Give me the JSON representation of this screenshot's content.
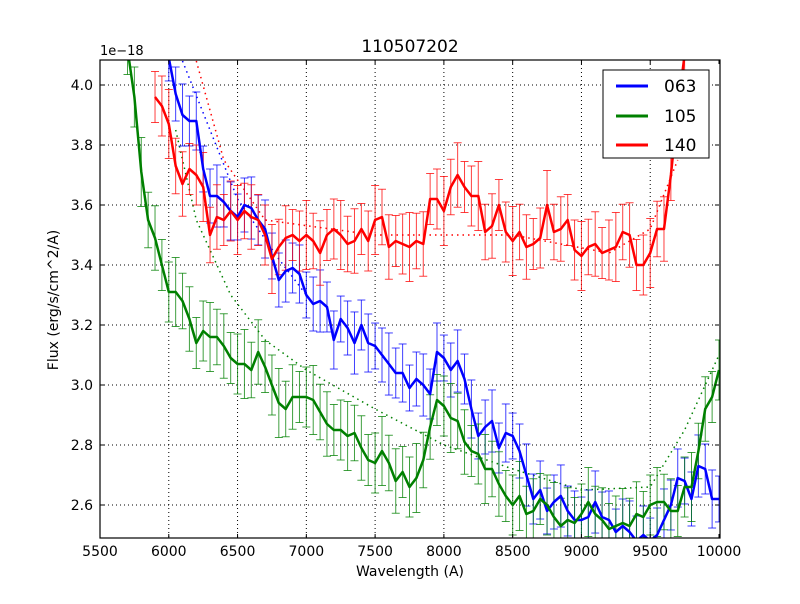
{
  "chart_data": {
    "type": "line",
    "title": "110507202",
    "xlabel": "Wavelength (A)",
    "ylabel": "Flux (erg/s/cm^2/A)",
    "y_offset_label": "1e−18",
    "xlim": [
      5500,
      10000
    ],
    "ylim": [
      2.49,
      4.08
    ],
    "grid": true,
    "legend_position": "upper right",
    "x_ticks": [
      5500,
      6000,
      6500,
      7000,
      7500,
      8000,
      8500,
      9000,
      9500,
      10000
    ],
    "x_tick_labels": [
      "5500",
      "6000",
      "6500",
      "7000",
      "7500",
      "8000",
      "8500",
      "9000",
      "9500",
      "10000"
    ],
    "y_ticks": [
      2.6,
      2.8,
      3.0,
      3.2,
      3.4,
      3.6,
      3.8,
      4.0
    ],
    "y_tick_labels": [
      "2.6",
      "2.8",
      "3.0",
      "3.2",
      "3.4",
      "3.6",
      "3.8",
      "4.0"
    ],
    "series": [
      {
        "name": "063",
        "color": "#0000ff",
        "x": [
          6000,
          6050,
          6100,
          6150,
          6200,
          6250,
          6300,
          6350,
          6400,
          6450,
          6500,
          6550,
          6600,
          6650,
          6700,
          6750,
          6800,
          6850,
          6900,
          6950,
          7000,
          7050,
          7100,
          7150,
          7200,
          7250,
          7300,
          7350,
          7400,
          7450,
          7500,
          7550,
          7600,
          7650,
          7700,
          7750,
          7800,
          7850,
          7900,
          7950,
          8000,
          8050,
          8100,
          8150,
          8200,
          8250,
          8300,
          8350,
          8400,
          8450,
          8500,
          8550,
          8600,
          8650,
          8700,
          8750,
          8800,
          8850,
          8900,
          8950,
          9000,
          9050,
          9100,
          9150,
          9200,
          9250,
          9300,
          9350,
          9400,
          9450,
          9500,
          9550,
          9600,
          9650,
          9700,
          9750,
          9800,
          9850,
          9900,
          9950,
          10000
        ],
        "values": [
          4.09,
          3.97,
          3.9,
          3.88,
          3.88,
          3.72,
          3.63,
          3.63,
          3.61,
          3.58,
          3.56,
          3.6,
          3.59,
          3.55,
          3.52,
          3.43,
          3.35,
          3.38,
          3.39,
          3.37,
          3.3,
          3.27,
          3.28,
          3.26,
          3.15,
          3.22,
          3.19,
          3.14,
          3.2,
          3.14,
          3.13,
          3.1,
          3.07,
          3.04,
          3.04,
          2.99,
          3.02,
          3.0,
          2.97,
          3.11,
          3.09,
          3.05,
          3.08,
          3.02,
          2.92,
          2.83,
          2.86,
          2.88,
          2.79,
          2.84,
          2.83,
          2.78,
          2.7,
          2.62,
          2.65,
          2.58,
          2.61,
          2.63,
          2.58,
          2.55,
          2.55,
          2.56,
          2.61,
          2.56,
          2.55,
          2.51,
          2.53,
          2.51,
          2.48,
          2.5,
          2.48,
          2.5,
          2.55,
          2.6,
          2.69,
          2.68,
          2.62,
          2.73,
          2.72,
          2.62,
          2.62
        ],
        "error": 0.09
      },
      {
        "name": "105",
        "color": "#008000",
        "x": [
          5700,
          5750,
          5800,
          5850,
          5900,
          5950,
          6000,
          6050,
          6100,
          6150,
          6200,
          6250,
          6300,
          6350,
          6400,
          6450,
          6500,
          6550,
          6600,
          6650,
          6700,
          6750,
          6800,
          6850,
          6900,
          6950,
          7000,
          7050,
          7100,
          7150,
          7200,
          7250,
          7300,
          7350,
          7400,
          7450,
          7500,
          7550,
          7600,
          7650,
          7700,
          7750,
          7800,
          7850,
          7900,
          7950,
          8000,
          8050,
          8100,
          8150,
          8200,
          8250,
          8300,
          8350,
          8400,
          8450,
          8500,
          8550,
          8600,
          8650,
          8700,
          8750,
          8800,
          8850,
          8900,
          8950,
          9000,
          9050,
          9100,
          9150,
          9200,
          9250,
          9300,
          9350,
          9400,
          9450,
          9500,
          9550,
          9600,
          9650,
          9700,
          9750,
          9800,
          9850,
          9900,
          9950,
          10000
        ],
        "values": [
          4.12,
          3.96,
          3.71,
          3.55,
          3.49,
          3.4,
          3.31,
          3.31,
          3.28,
          3.22,
          3.14,
          3.18,
          3.16,
          3.16,
          3.13,
          3.09,
          3.07,
          3.07,
          3.05,
          3.11,
          3.06,
          3.0,
          2.94,
          2.92,
          2.96,
          2.96,
          2.96,
          2.95,
          2.91,
          2.87,
          2.85,
          2.85,
          2.83,
          2.84,
          2.79,
          2.75,
          2.74,
          2.78,
          2.74,
          2.68,
          2.71,
          2.66,
          2.69,
          2.75,
          2.86,
          2.95,
          2.93,
          2.89,
          2.88,
          2.81,
          2.78,
          2.77,
          2.72,
          2.72,
          2.67,
          2.63,
          2.6,
          2.63,
          2.57,
          2.58,
          2.62,
          2.6,
          2.56,
          2.53,
          2.55,
          2.54,
          2.57,
          2.61,
          2.57,
          2.55,
          2.52,
          2.53,
          2.54,
          2.53,
          2.57,
          2.56,
          2.6,
          2.61,
          2.61,
          2.58,
          2.58,
          2.66,
          2.66,
          2.78,
          2.92,
          2.96,
          3.05
        ],
        "error": 0.1
      },
      {
        "name": "140",
        "color": "#ff0000",
        "x": [
          5900,
          5950,
          6000,
          6050,
          6100,
          6150,
          6200,
          6250,
          6300,
          6350,
          6400,
          6450,
          6500,
          6550,
          6600,
          6650,
          6700,
          6750,
          6800,
          6850,
          6900,
          6950,
          7000,
          7050,
          7100,
          7150,
          7200,
          7250,
          7300,
          7350,
          7400,
          7450,
          7500,
          7550,
          7600,
          7650,
          7700,
          7750,
          7800,
          7850,
          7900,
          7950,
          8000,
          8050,
          8100,
          8150,
          8200,
          8250,
          8300,
          8350,
          8400,
          8450,
          8500,
          8550,
          8600,
          8650,
          8700,
          8750,
          8800,
          8850,
          8900,
          8950,
          9000,
          9050,
          9100,
          9150,
          9200,
          9250,
          9300,
          9350,
          9400,
          9450,
          9500,
          9550,
          9600,
          9650,
          9700,
          9750
        ],
        "values": [
          3.96,
          3.93,
          3.87,
          3.73,
          3.67,
          3.72,
          3.7,
          3.66,
          3.5,
          3.56,
          3.55,
          3.58,
          3.55,
          3.58,
          3.56,
          3.55,
          3.5,
          3.42,
          3.46,
          3.49,
          3.5,
          3.48,
          3.5,
          3.48,
          3.44,
          3.5,
          3.52,
          3.5,
          3.47,
          3.48,
          3.52,
          3.48,
          3.55,
          3.56,
          3.46,
          3.48,
          3.47,
          3.46,
          3.48,
          3.47,
          3.62,
          3.62,
          3.58,
          3.66,
          3.7,
          3.66,
          3.63,
          3.63,
          3.51,
          3.53,
          3.6,
          3.51,
          3.48,
          3.51,
          3.46,
          3.47,
          3.49,
          3.6,
          3.51,
          3.52,
          3.55,
          3.45,
          3.43,
          3.46,
          3.47,
          3.44,
          3.45,
          3.46,
          3.51,
          3.5,
          3.4,
          3.4,
          3.44,
          3.52,
          3.52,
          3.7,
          3.92,
          4.1
        ],
        "error": 0.1
      }
    ],
    "dotted_model_curves": [
      {
        "series": "063",
        "color": "#0000ff",
        "x": [
          6100,
          6300,
          6500,
          6800,
          7000
        ],
        "values": [
          4.08,
          3.85,
          3.62,
          3.42,
          3.3
        ]
      },
      {
        "series": "105",
        "color": "#008000",
        "x": [
          6050,
          6200,
          6450,
          6700,
          7000,
          7500,
          8000,
          8500,
          9000,
          9500,
          9750,
          10000
        ],
        "values": [
          3.85,
          3.55,
          3.3,
          3.15,
          3.05,
          2.92,
          2.8,
          2.72,
          2.65,
          2.66,
          2.85,
          3.1
        ]
      },
      {
        "series": "140",
        "color": "#ff0000",
        "x": [
          6200,
          6400,
          6700,
          7500,
          8500,
          9200,
          9500,
          9700
        ],
        "values": [
          4.08,
          3.75,
          3.55,
          3.5,
          3.5,
          3.44,
          3.52,
          3.75
        ]
      }
    ]
  },
  "legend": {
    "items": [
      {
        "label": "063",
        "color": "#0000ff"
      },
      {
        "label": "105",
        "color": "#008000"
      },
      {
        "label": "140",
        "color": "#ff0000"
      }
    ]
  }
}
